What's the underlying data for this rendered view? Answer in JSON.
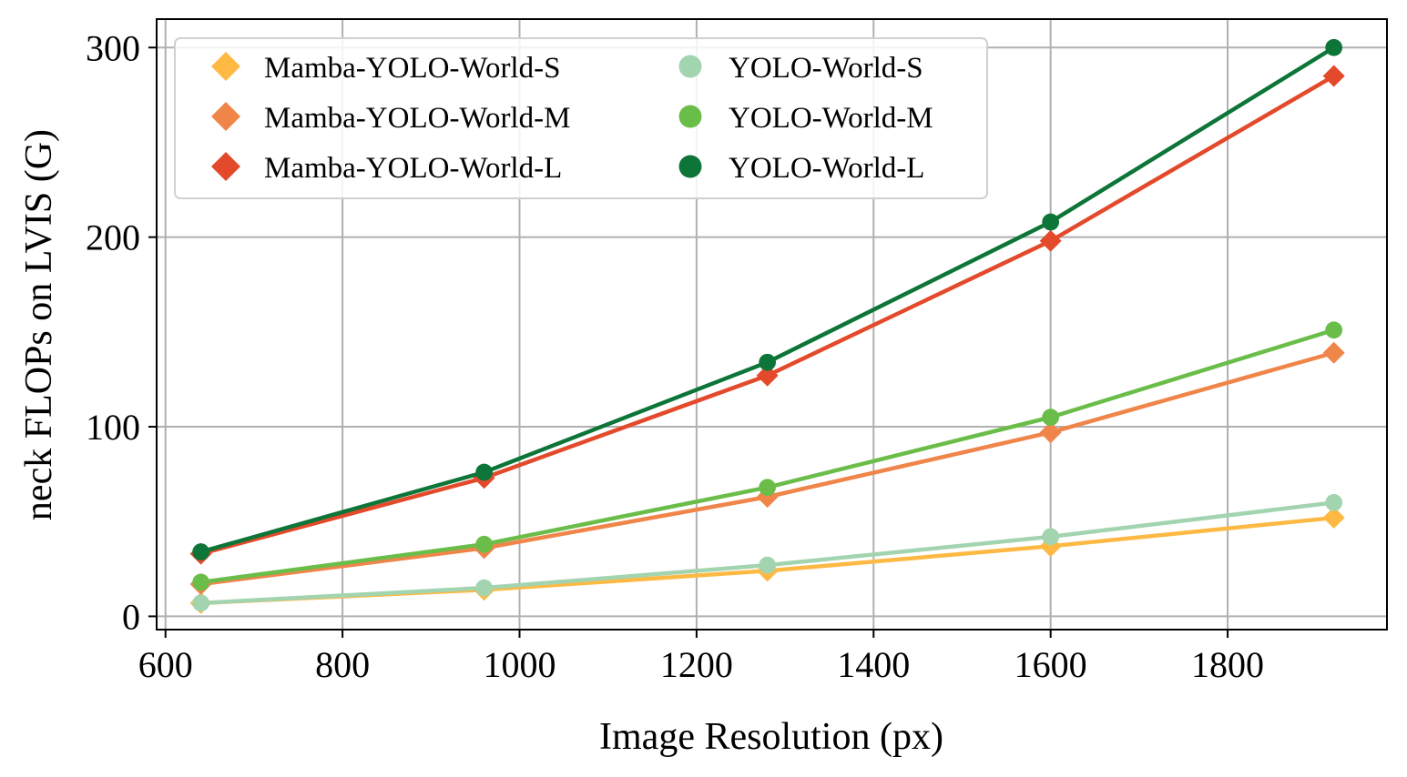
{
  "chart_data": {
    "type": "line",
    "xlabel": "Image Resolution (px)",
    "ylabel": "neck FLOPs on LVIS (G)",
    "xlim": [
      590,
      1980
    ],
    "ylim": [
      -7,
      315
    ],
    "xticks": [
      600,
      800,
      1000,
      1200,
      1400,
      1600,
      1800
    ],
    "yticks": [
      0,
      100,
      200,
      300
    ],
    "grid": true,
    "legend_position": "top-left",
    "legend_columns": 2,
    "x": [
      640,
      960,
      1280,
      1600,
      1920
    ],
    "series": [
      {
        "name": "Mamba-YOLO-World-S",
        "marker": "diamond",
        "color": "#fdb944",
        "values": [
          7,
          14,
          24,
          37,
          52
        ]
      },
      {
        "name": "Mamba-YOLO-World-M",
        "marker": "diamond",
        "color": "#f0854a",
        "values": [
          17,
          36,
          63,
          97,
          139
        ]
      },
      {
        "name": "Mamba-YOLO-World-L",
        "marker": "diamond",
        "color": "#e34a2b",
        "values": [
          33,
          73,
          127,
          198,
          285
        ]
      },
      {
        "name": "YOLO-World-S",
        "marker": "circle",
        "color": "#a3d4b0",
        "values": [
          7,
          15,
          27,
          42,
          60
        ]
      },
      {
        "name": "YOLO-World-M",
        "marker": "circle",
        "color": "#6bbd4a",
        "values": [
          18,
          38,
          68,
          105,
          151
        ]
      },
      {
        "name": "YOLO-World-L",
        "marker": "circle",
        "color": "#0d7538",
        "values": [
          34,
          76,
          134,
          208,
          300
        ]
      }
    ]
  }
}
